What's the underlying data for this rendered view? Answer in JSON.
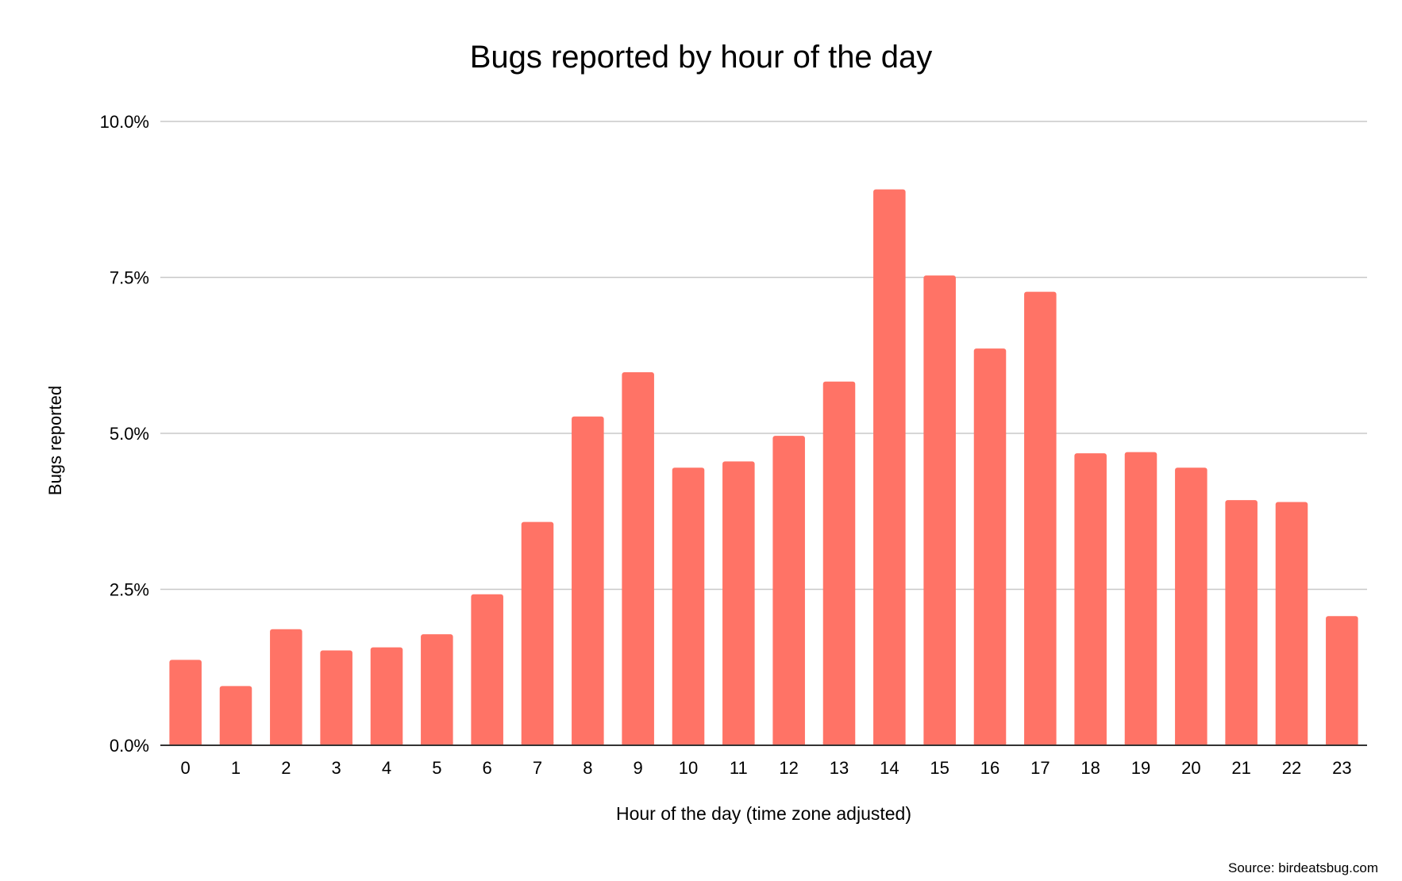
{
  "chart_data": {
    "type": "bar",
    "title": "Bugs reported by hour of the day",
    "xlabel": "Hour of the day (time zone adjusted)",
    "ylabel": "Bugs reported",
    "source": "Source: birdeatsbug.com",
    "categories": [
      "0",
      "1",
      "2",
      "3",
      "4",
      "5",
      "6",
      "7",
      "8",
      "9",
      "10",
      "11",
      "12",
      "13",
      "14",
      "15",
      "16",
      "17",
      "18",
      "19",
      "20",
      "21",
      "22",
      "23"
    ],
    "values": [
      1.37,
      0.95,
      1.86,
      1.52,
      1.57,
      1.78,
      2.42,
      3.58,
      5.27,
      5.98,
      4.45,
      4.55,
      4.96,
      5.83,
      8.91,
      7.53,
      6.36,
      7.27,
      4.68,
      4.7,
      4.45,
      3.93,
      3.9,
      2.07
    ],
    "ylim": [
      0,
      10
    ],
    "yticks": [
      "0.0%",
      "2.5%",
      "5.0%",
      "7.5%",
      "10.0%"
    ],
    "ytick_values": [
      0,
      2.5,
      5,
      7.5,
      10
    ],
    "grid": true,
    "legend": "none",
    "bar_color": "#ff7366",
    "grid_color": "#c8c8c8",
    "axis_color": "#333333"
  }
}
